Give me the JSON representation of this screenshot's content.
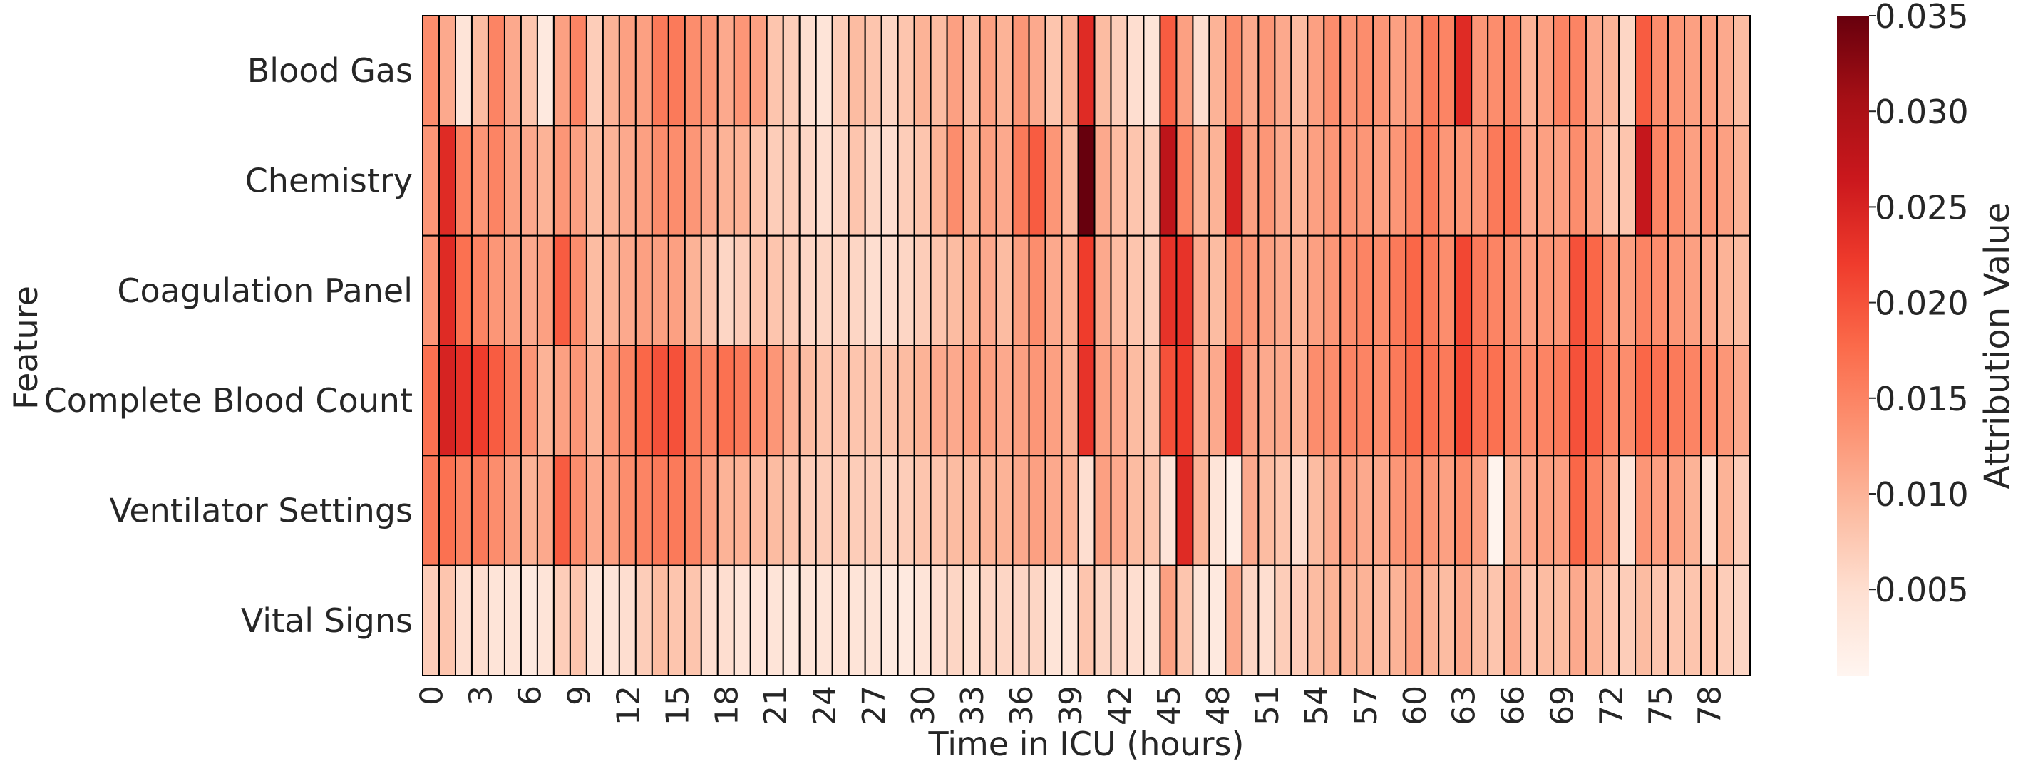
{
  "chart_data": {
    "type": "heatmap",
    "title": "",
    "xlabel": "Time in ICU (hours)",
    "ylabel": "Feature",
    "colorbar_label": "Attribution Value",
    "colormap": "Reds",
    "colormap_colors": [
      "#fff5f0",
      "#fee0d2",
      "#fcbba1",
      "#fc9272",
      "#fb6a4a",
      "#ef3b2c",
      "#cb181d",
      "#a50f15",
      "#67000d"
    ],
    "vmin": 0.0005,
    "vmax": 0.035,
    "colorbar_ticks": [
      "0.005",
      "0.010",
      "0.015",
      "0.020",
      "0.025",
      "0.030",
      "0.035"
    ],
    "x": [
      0,
      1,
      2,
      3,
      4,
      5,
      6,
      7,
      8,
      9,
      10,
      11,
      12,
      13,
      14,
      15,
      16,
      17,
      18,
      19,
      20,
      21,
      22,
      23,
      24,
      25,
      26,
      27,
      28,
      29,
      30,
      31,
      32,
      33,
      34,
      35,
      36,
      37,
      38,
      39,
      40,
      41,
      42,
      43,
      44,
      45,
      46,
      47,
      48,
      49,
      50,
      51,
      52,
      53,
      54,
      55,
      56,
      57,
      58,
      59,
      60,
      61,
      62,
      63,
      64,
      65,
      66,
      67,
      68,
      69,
      70,
      71,
      72,
      73,
      74,
      75,
      76,
      77,
      78,
      79,
      80
    ],
    "x_tick_labels": [
      "0",
      "3",
      "6",
      "9",
      "12",
      "15",
      "18",
      "21",
      "24",
      "27",
      "30",
      "33",
      "36",
      "39",
      "42",
      "45",
      "48",
      "51",
      "54",
      "57",
      "60",
      "63",
      "66",
      "69",
      "72",
      "75",
      "78"
    ],
    "y": [
      "Blood Gas",
      "Chemistry",
      "Coagulation Panel",
      "Complete Blood Count",
      "Ventilator Settings",
      "Vital Signs"
    ],
    "z": [
      [
        0.014,
        0.011,
        0.004,
        0.009,
        0.015,
        0.011,
        0.008,
        0.003,
        0.012,
        0.015,
        0.007,
        0.01,
        0.012,
        0.012,
        0.016,
        0.016,
        0.014,
        0.013,
        0.011,
        0.013,
        0.012,
        0.008,
        0.007,
        0.005,
        0.004,
        0.007,
        0.009,
        0.008,
        0.006,
        0.008,
        0.01,
        0.009,
        0.012,
        0.009,
        0.012,
        0.01,
        0.013,
        0.011,
        0.008,
        0.01,
        0.024,
        0.009,
        0.007,
        0.005,
        0.004,
        0.019,
        0.012,
        0.005,
        0.01,
        0.014,
        0.011,
        0.013,
        0.011,
        0.009,
        0.012,
        0.014,
        0.013,
        0.014,
        0.013,
        0.012,
        0.013,
        0.016,
        0.015,
        0.024,
        0.013,
        0.014,
        0.015,
        0.01,
        0.012,
        0.015,
        0.015,
        0.011,
        0.01,
        0.006,
        0.019,
        0.014,
        0.013,
        0.012,
        0.012,
        0.011,
        0.009
      ],
      [
        0.013,
        0.024,
        0.015,
        0.013,
        0.015,
        0.012,
        0.011,
        0.01,
        0.013,
        0.012,
        0.009,
        0.01,
        0.011,
        0.012,
        0.014,
        0.014,
        0.013,
        0.011,
        0.01,
        0.01,
        0.008,
        0.007,
        0.007,
        0.006,
        0.005,
        0.006,
        0.008,
        0.006,
        0.005,
        0.007,
        0.008,
        0.01,
        0.014,
        0.01,
        0.012,
        0.011,
        0.016,
        0.019,
        0.013,
        0.009,
        0.035,
        0.011,
        0.009,
        0.008,
        0.007,
        0.028,
        0.015,
        0.01,
        0.01,
        0.025,
        0.012,
        0.013,
        0.011,
        0.01,
        0.012,
        0.013,
        0.013,
        0.013,
        0.012,
        0.013,
        0.015,
        0.016,
        0.013,
        0.013,
        0.013,
        0.016,
        0.017,
        0.011,
        0.012,
        0.012,
        0.014,
        0.012,
        0.008,
        0.008,
        0.027,
        0.015,
        0.014,
        0.012,
        0.013,
        0.012,
        0.01
      ],
      [
        0.013,
        0.024,
        0.017,
        0.015,
        0.013,
        0.012,
        0.011,
        0.012,
        0.019,
        0.014,
        0.009,
        0.01,
        0.011,
        0.012,
        0.012,
        0.012,
        0.01,
        0.008,
        0.006,
        0.007,
        0.008,
        0.008,
        0.007,
        0.006,
        0.006,
        0.006,
        0.006,
        0.005,
        0.005,
        0.006,
        0.007,
        0.008,
        0.009,
        0.01,
        0.011,
        0.009,
        0.012,
        0.014,
        0.011,
        0.01,
        0.022,
        0.011,
        0.009,
        0.008,
        0.007,
        0.023,
        0.023,
        0.011,
        0.009,
        0.014,
        0.013,
        0.012,
        0.011,
        0.01,
        0.012,
        0.013,
        0.014,
        0.015,
        0.014,
        0.016,
        0.018,
        0.016,
        0.014,
        0.021,
        0.016,
        0.015,
        0.014,
        0.012,
        0.013,
        0.013,
        0.02,
        0.018,
        0.013,
        0.012,
        0.015,
        0.014,
        0.013,
        0.012,
        0.011,
        0.01,
        0.009
      ],
      [
        0.017,
        0.025,
        0.023,
        0.022,
        0.019,
        0.016,
        0.013,
        0.01,
        0.012,
        0.013,
        0.01,
        0.013,
        0.015,
        0.018,
        0.02,
        0.02,
        0.016,
        0.015,
        0.017,
        0.016,
        0.014,
        0.013,
        0.01,
        0.009,
        0.008,
        0.008,
        0.008,
        0.008,
        0.008,
        0.009,
        0.01,
        0.011,
        0.011,
        0.012,
        0.012,
        0.011,
        0.012,
        0.013,
        0.012,
        0.01,
        0.023,
        0.012,
        0.011,
        0.009,
        0.008,
        0.02,
        0.022,
        0.011,
        0.011,
        0.023,
        0.012,
        0.011,
        0.011,
        0.01,
        0.014,
        0.014,
        0.015,
        0.015,
        0.014,
        0.016,
        0.018,
        0.017,
        0.016,
        0.021,
        0.017,
        0.017,
        0.015,
        0.014,
        0.015,
        0.016,
        0.02,
        0.019,
        0.015,
        0.014,
        0.018,
        0.017,
        0.016,
        0.015,
        0.014,
        0.013,
        0.011
      ],
      [
        0.016,
        0.017,
        0.015,
        0.016,
        0.014,
        0.012,
        0.01,
        0.011,
        0.019,
        0.014,
        0.011,
        0.012,
        0.014,
        0.015,
        0.016,
        0.016,
        0.015,
        0.012,
        0.01,
        0.01,
        0.009,
        0.009,
        0.008,
        0.007,
        0.007,
        0.007,
        0.007,
        0.007,
        0.006,
        0.007,
        0.008,
        0.008,
        0.009,
        0.009,
        0.01,
        0.01,
        0.011,
        0.012,
        0.011,
        0.01,
        0.005,
        0.012,
        0.011,
        0.009,
        0.008,
        0.004,
        0.024,
        0.01,
        0.004,
        0.002,
        0.011,
        0.009,
        0.008,
        0.005,
        0.009,
        0.011,
        0.012,
        0.011,
        0.011,
        0.013,
        0.014,
        0.013,
        0.012,
        0.014,
        0.012,
        0.001,
        0.01,
        0.011,
        0.012,
        0.012,
        0.018,
        0.015,
        0.012,
        0.004,
        0.013,
        0.012,
        0.012,
        0.01,
        0.004,
        0.01,
        0.007
      ],
      [
        0.007,
        0.008,
        0.005,
        0.005,
        0.004,
        0.004,
        0.003,
        0.004,
        0.007,
        0.008,
        0.004,
        0.004,
        0.005,
        0.007,
        0.009,
        0.008,
        0.008,
        0.005,
        0.005,
        0.004,
        0.004,
        0.004,
        0.003,
        0.004,
        0.004,
        0.004,
        0.004,
        0.004,
        0.003,
        0.003,
        0.004,
        0.005,
        0.006,
        0.005,
        0.006,
        0.006,
        0.006,
        0.006,
        0.004,
        0.004,
        0.008,
        0.006,
        0.006,
        0.005,
        0.004,
        0.012,
        0.008,
        0.004,
        0.003,
        0.011,
        0.006,
        0.005,
        0.007,
        0.007,
        0.009,
        0.01,
        0.01,
        0.01,
        0.009,
        0.01,
        0.012,
        0.01,
        0.009,
        0.011,
        0.009,
        0.008,
        0.011,
        0.008,
        0.009,
        0.009,
        0.011,
        0.01,
        0.008,
        0.007,
        0.009,
        0.008,
        0.008,
        0.008,
        0.008,
        0.007,
        0.006
      ]
    ],
    "legend": "colorbar-right",
    "grid": false
  }
}
